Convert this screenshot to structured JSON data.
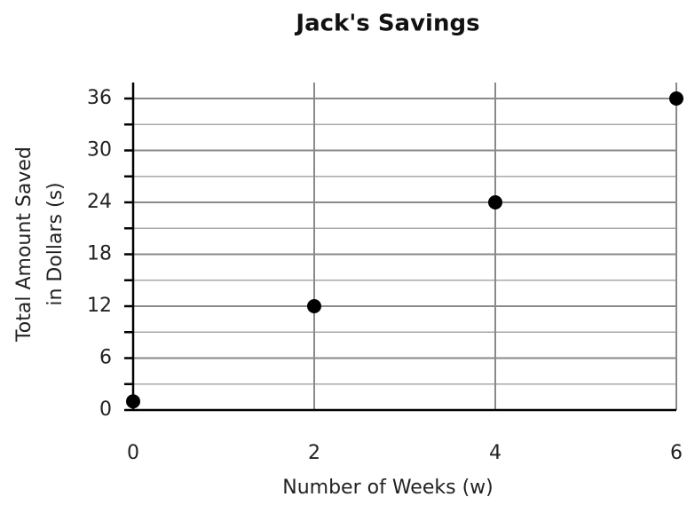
{
  "chart_data": {
    "type": "scatter",
    "title": "Jack's Savings",
    "x_label": "Number of Weeks (w)",
    "y_label": [
      "Total Amount Saved",
      "in Dollars (s)"
    ],
    "x": [
      0,
      2,
      4,
      6
    ],
    "values": [
      1,
      12,
      24,
      36
    ],
    "color": "#000000",
    "xlim": [
      0,
      6
    ],
    "xticks": [
      0,
      2,
      4,
      6
    ],
    "ylim": [
      0,
      36
    ],
    "yticks": [
      0,
      6,
      12,
      18,
      24,
      30,
      36
    ],
    "minor_yticks": [
      3,
      9,
      15,
      21,
      27,
      33
    ],
    "grid": true
  }
}
